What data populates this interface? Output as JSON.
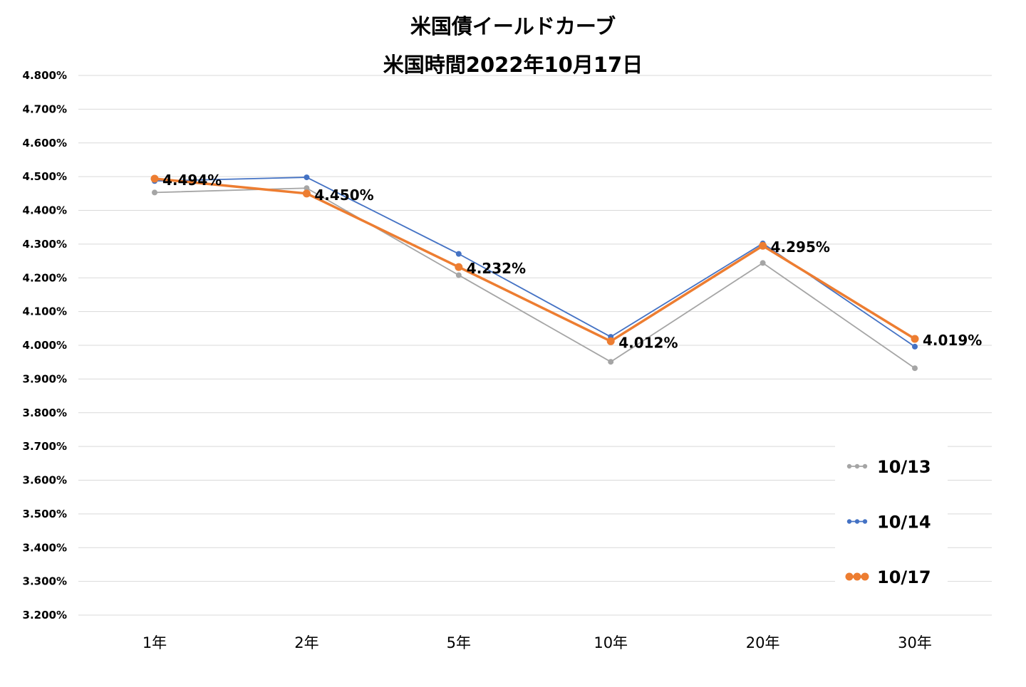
{
  "chart_data": {
    "type": "line",
    "title": "米国債イールドカーブ",
    "subtitle": "米国時間2022年10月17日",
    "categories": [
      "1年",
      "2年",
      "5年",
      "10年",
      "20年",
      "30年"
    ],
    "ylim": [
      3.2,
      4.8
    ],
    "ytick_step": 0.1,
    "y_tick_labels": [
      "4.800%",
      "4.700%",
      "4.600%",
      "4.500%",
      "4.400%",
      "4.300%",
      "4.200%",
      "4.100%",
      "4.000%",
      "3.900%",
      "3.800%",
      "3.700%",
      "3.600%",
      "3.500%",
      "3.400%",
      "3.300%",
      "3.200%"
    ],
    "grid": true,
    "legend_position": "bottom-right",
    "series": [
      {
        "name": "10/13",
        "color": "#a5a5a5",
        "values": [
          4.453,
          4.466,
          4.208,
          3.951,
          4.244,
          3.932
        ]
      },
      {
        "name": "10/14",
        "color": "#4472c4",
        "values": [
          4.487,
          4.498,
          4.271,
          4.025,
          4.302,
          3.996
        ]
      },
      {
        "name": "10/17",
        "color": "#ed7d31",
        "values": [
          4.494,
          4.45,
          4.232,
          4.012,
          4.295,
          4.019
        ]
      }
    ],
    "data_labels": [
      "4.494%",
      "4.450%",
      "4.232%",
      "4.012%",
      "4.295%",
      "4.019%"
    ]
  }
}
